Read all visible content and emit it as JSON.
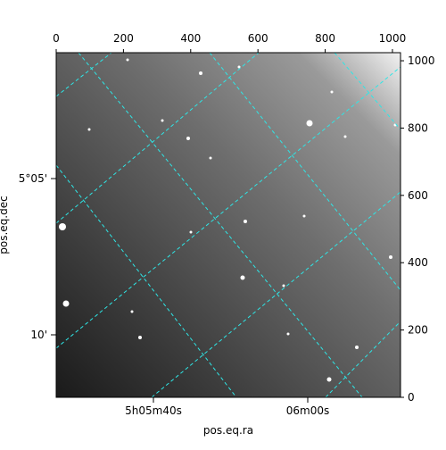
{
  "chart_data": {
    "type": "image",
    "xlim": [
      0,
      1024
    ],
    "xticks": [
      0,
      200,
      400,
      600,
      800,
      1000
    ],
    "ylim": [
      0,
      1024
    ],
    "yticks": [
      0,
      200,
      400,
      600,
      800,
      1000
    ],
    "ra_ticks": [
      "5h05m40s",
      "06m00s"
    ],
    "dec_ticks": [
      "5°05'",
      "10'"
    ],
    "x_label": "pos.eq.ra",
    "y_label": "pos.eq.dec"
  }
}
